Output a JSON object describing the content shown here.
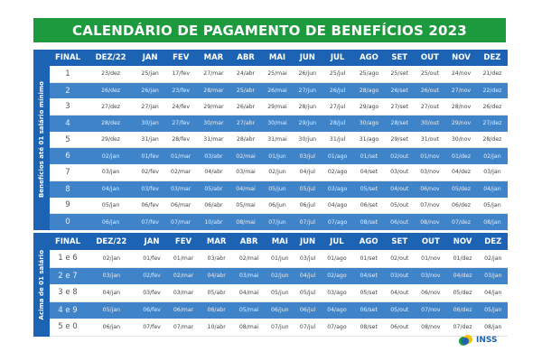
{
  "title": "CALENDÁRIO DE PAGAMENTO DE BENEFÍCIOS 2023",
  "columns": [
    "FINAL",
    "DEZ/22",
    "JAN",
    "FEV",
    "MAR",
    "ABR",
    "MAI",
    "JUN",
    "JUL",
    "AGO",
    "SET",
    "OUT",
    "NOV",
    "DEZ"
  ],
  "table1": {
    "side_label": "Benefícios até 01 salário mínimo",
    "rows": [
      [
        "1",
        "23/dez",
        "25/jan",
        "17/fev",
        "27/mar",
        "24/abr",
        "25/mai",
        "26/jun",
        "25/jul",
        "25/ago",
        "25/set",
        "25/out",
        "24/nov",
        "21/dez"
      ],
      [
        "2",
        "26/dez",
        "26/jan",
        "23/fev",
        "28/mar",
        "25/abr",
        "26/mai",
        "27/jun",
        "26/jul",
        "28/ago",
        "26/set",
        "26/out",
        "27/nov",
        "22/dez"
      ],
      [
        "3",
        "27/dez",
        "27/jan",
        "24/fev",
        "29/mar",
        "26/abr",
        "29/mai",
        "28/jun",
        "27/jul",
        "29/ago",
        "27/set",
        "27/out",
        "28/nov",
        "26/dez"
      ],
      [
        "4",
        "28/dez",
        "30/jan",
        "27/fev",
        "30/mar",
        "27/abr",
        "30/mai",
        "29/jun",
        "28/jul",
        "30/ago",
        "28/set",
        "30/out",
        "29/nov",
        "27/dez"
      ],
      [
        "5",
        "29/dez",
        "31/jan",
        "28/fev",
        "31/mar",
        "28/abr",
        "31/mai",
        "30/jun",
        "31/jul",
        "31/ago",
        "29/set",
        "31/out",
        "30/nov",
        "28/dez"
      ],
      [
        "6",
        "02/jan",
        "01/fev",
        "01/mar",
        "03/abr",
        "02/mai",
        "01/jun",
        "03/jul",
        "01/ago",
        "01/set",
        "02/out",
        "01/nov",
        "01/dez",
        "02/jan"
      ],
      [
        "7",
        "03/jan",
        "02/fev",
        "02/mar",
        "04/abr",
        "03/mai",
        "02/jun",
        "04/jul",
        "02/ago",
        "04/set",
        "03/out",
        "03/nov",
        "04/dez",
        "03/jan"
      ],
      [
        "8",
        "04/jan",
        "03/fev",
        "03/mar",
        "05/abr",
        "04/mai",
        "05/jun",
        "05/jul",
        "03/ago",
        "05/set",
        "04/out",
        "06/nov",
        "05/dez",
        "04/jan"
      ],
      [
        "9",
        "05/jan",
        "06/fev",
        "06/mar",
        "06/abr",
        "05/mai",
        "06/jun",
        "06/jul",
        "04/ago",
        "06/set",
        "05/out",
        "07/nov",
        "06/dez",
        "05/jan"
      ],
      [
        "0",
        "06/jan",
        "07/fev",
        "07/mar",
        "10/abr",
        "08/mai",
        "07/jun",
        "07/jul",
        "07/ago",
        "08/set",
        "06/out",
        "08/nov",
        "07/dez",
        "08/jan"
      ]
    ]
  },
  "table2": {
    "side_label": "Acima de 01 salário",
    "rows": [
      [
        "1 e 6",
        "02/jan",
        "01/fev",
        "01/mar",
        "03/abr",
        "02/mai",
        "01/jun",
        "03/jul",
        "01/ago",
        "01/set",
        "02/out",
        "01/nov",
        "01/dez",
        "02/jan"
      ],
      [
        "2 e 7",
        "03/jan",
        "02/fev",
        "02/mar",
        "04/abr",
        "03/mai",
        "02/jun",
        "04/jul",
        "02/ago",
        "04/set",
        "03/out",
        "03/nov",
        "04/dez",
        "03/jan"
      ],
      [
        "3 e 8",
        "04/jan",
        "03/fev",
        "03/mar",
        "05/abr",
        "04/mai",
        "05/jun",
        "05/jul",
        "03/ago",
        "05/set",
        "04/out",
        "06/nov",
        "05/dez",
        "04/jan"
      ],
      [
        "4 e 9",
        "05/jan",
        "06/fev",
        "06/mar",
        "06/abr",
        "05/mai",
        "06/jun",
        "06/jul",
        "04/ago",
        "06/set",
        "05/out",
        "07/nov",
        "06/dez",
        "05/jan"
      ],
      [
        "5 e 0",
        "06/jan",
        "07/fev",
        "07/mar",
        "10/abr",
        "08/mai",
        "07/jun",
        "07/jul",
        "07/ago",
        "08/set",
        "06/out",
        "08/nov",
        "07/dez",
        "08/jan"
      ]
    ]
  },
  "logo": {
    "text": "INSS",
    "icon": "inss-logo-icon"
  },
  "colors": {
    "title_green": "#1e9a3e",
    "header_blue": "#1d63b3",
    "alt_row_blue": "#3f83c9"
  }
}
